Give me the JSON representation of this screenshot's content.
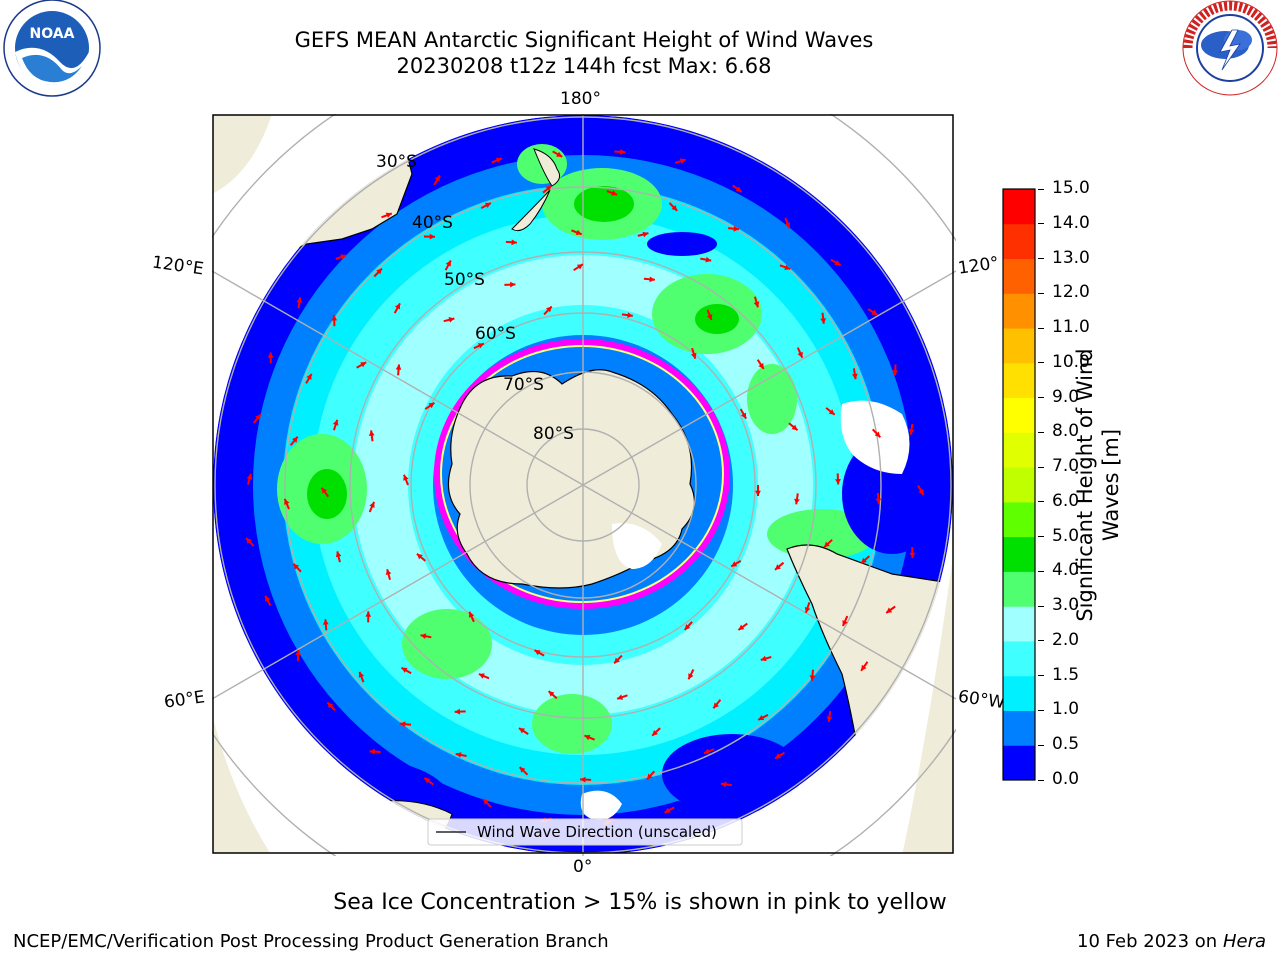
{
  "header": {
    "title_line1": "GEFS MEAN Antarctic Significant Height of Wind Waves",
    "title_line2": "20230208 t12z 144h fcst   Max: 6.68"
  },
  "logos": {
    "left": {
      "text": "NOAA",
      "ring_text": "NATIONAL OCEANIC AND ATMOSPHERIC ADMINISTRATION · U.S. DEPARTMENT OF COMMERCE"
    },
    "right": {
      "ring_text": "NATIONAL WEATHER SERVICE"
    }
  },
  "map": {
    "projection": "south-polar-stereographic",
    "longitude_labels": [
      "180°",
      "120°E",
      "120°",
      "60°E",
      "60°W",
      "0°"
    ],
    "latitude_labels": [
      "30°S",
      "40°S",
      "50°S",
      "60°S",
      "70°S",
      "80°S"
    ],
    "legend": "Wind Wave Direction (unscaled)",
    "colors": {
      "land": "#efecd9",
      "ocean_low": "#0000ff",
      "sea_ice": "#ff00ff",
      "arrow": "#ff0000",
      "grid": "#b0b0b0"
    }
  },
  "colorbar": {
    "title": "Significant Height of Wind Waves [m]",
    "ticks": [
      "0.0",
      "0.5",
      "1.0",
      "1.5",
      "2.0",
      "3.0",
      "4.0",
      "5.0",
      "6.0",
      "7.0",
      "8.0",
      "9.0",
      "10.0",
      "11.0",
      "12.0",
      "13.0",
      "14.0",
      "15.0"
    ],
    "colors": [
      "#0000ff",
      "#0080ff",
      "#00f0ff",
      "#40ffff",
      "#a0ffff",
      "#50ff70",
      "#00e000",
      "#60ff00",
      "#c0ff00",
      "#e0ff00",
      "#ffff00",
      "#ffe000",
      "#ffc000",
      "#ff9000",
      "#ff6000",
      "#ff3000",
      "#ff0000"
    ]
  },
  "caption": "Sea Ice Concentration > 15% is shown in pink to yellow",
  "footer": {
    "left": "NCEP/EMC/Verification Post Processing Product Generation Branch",
    "right_date": "10 Feb 2023 on",
    "right_host": "Hera"
  }
}
